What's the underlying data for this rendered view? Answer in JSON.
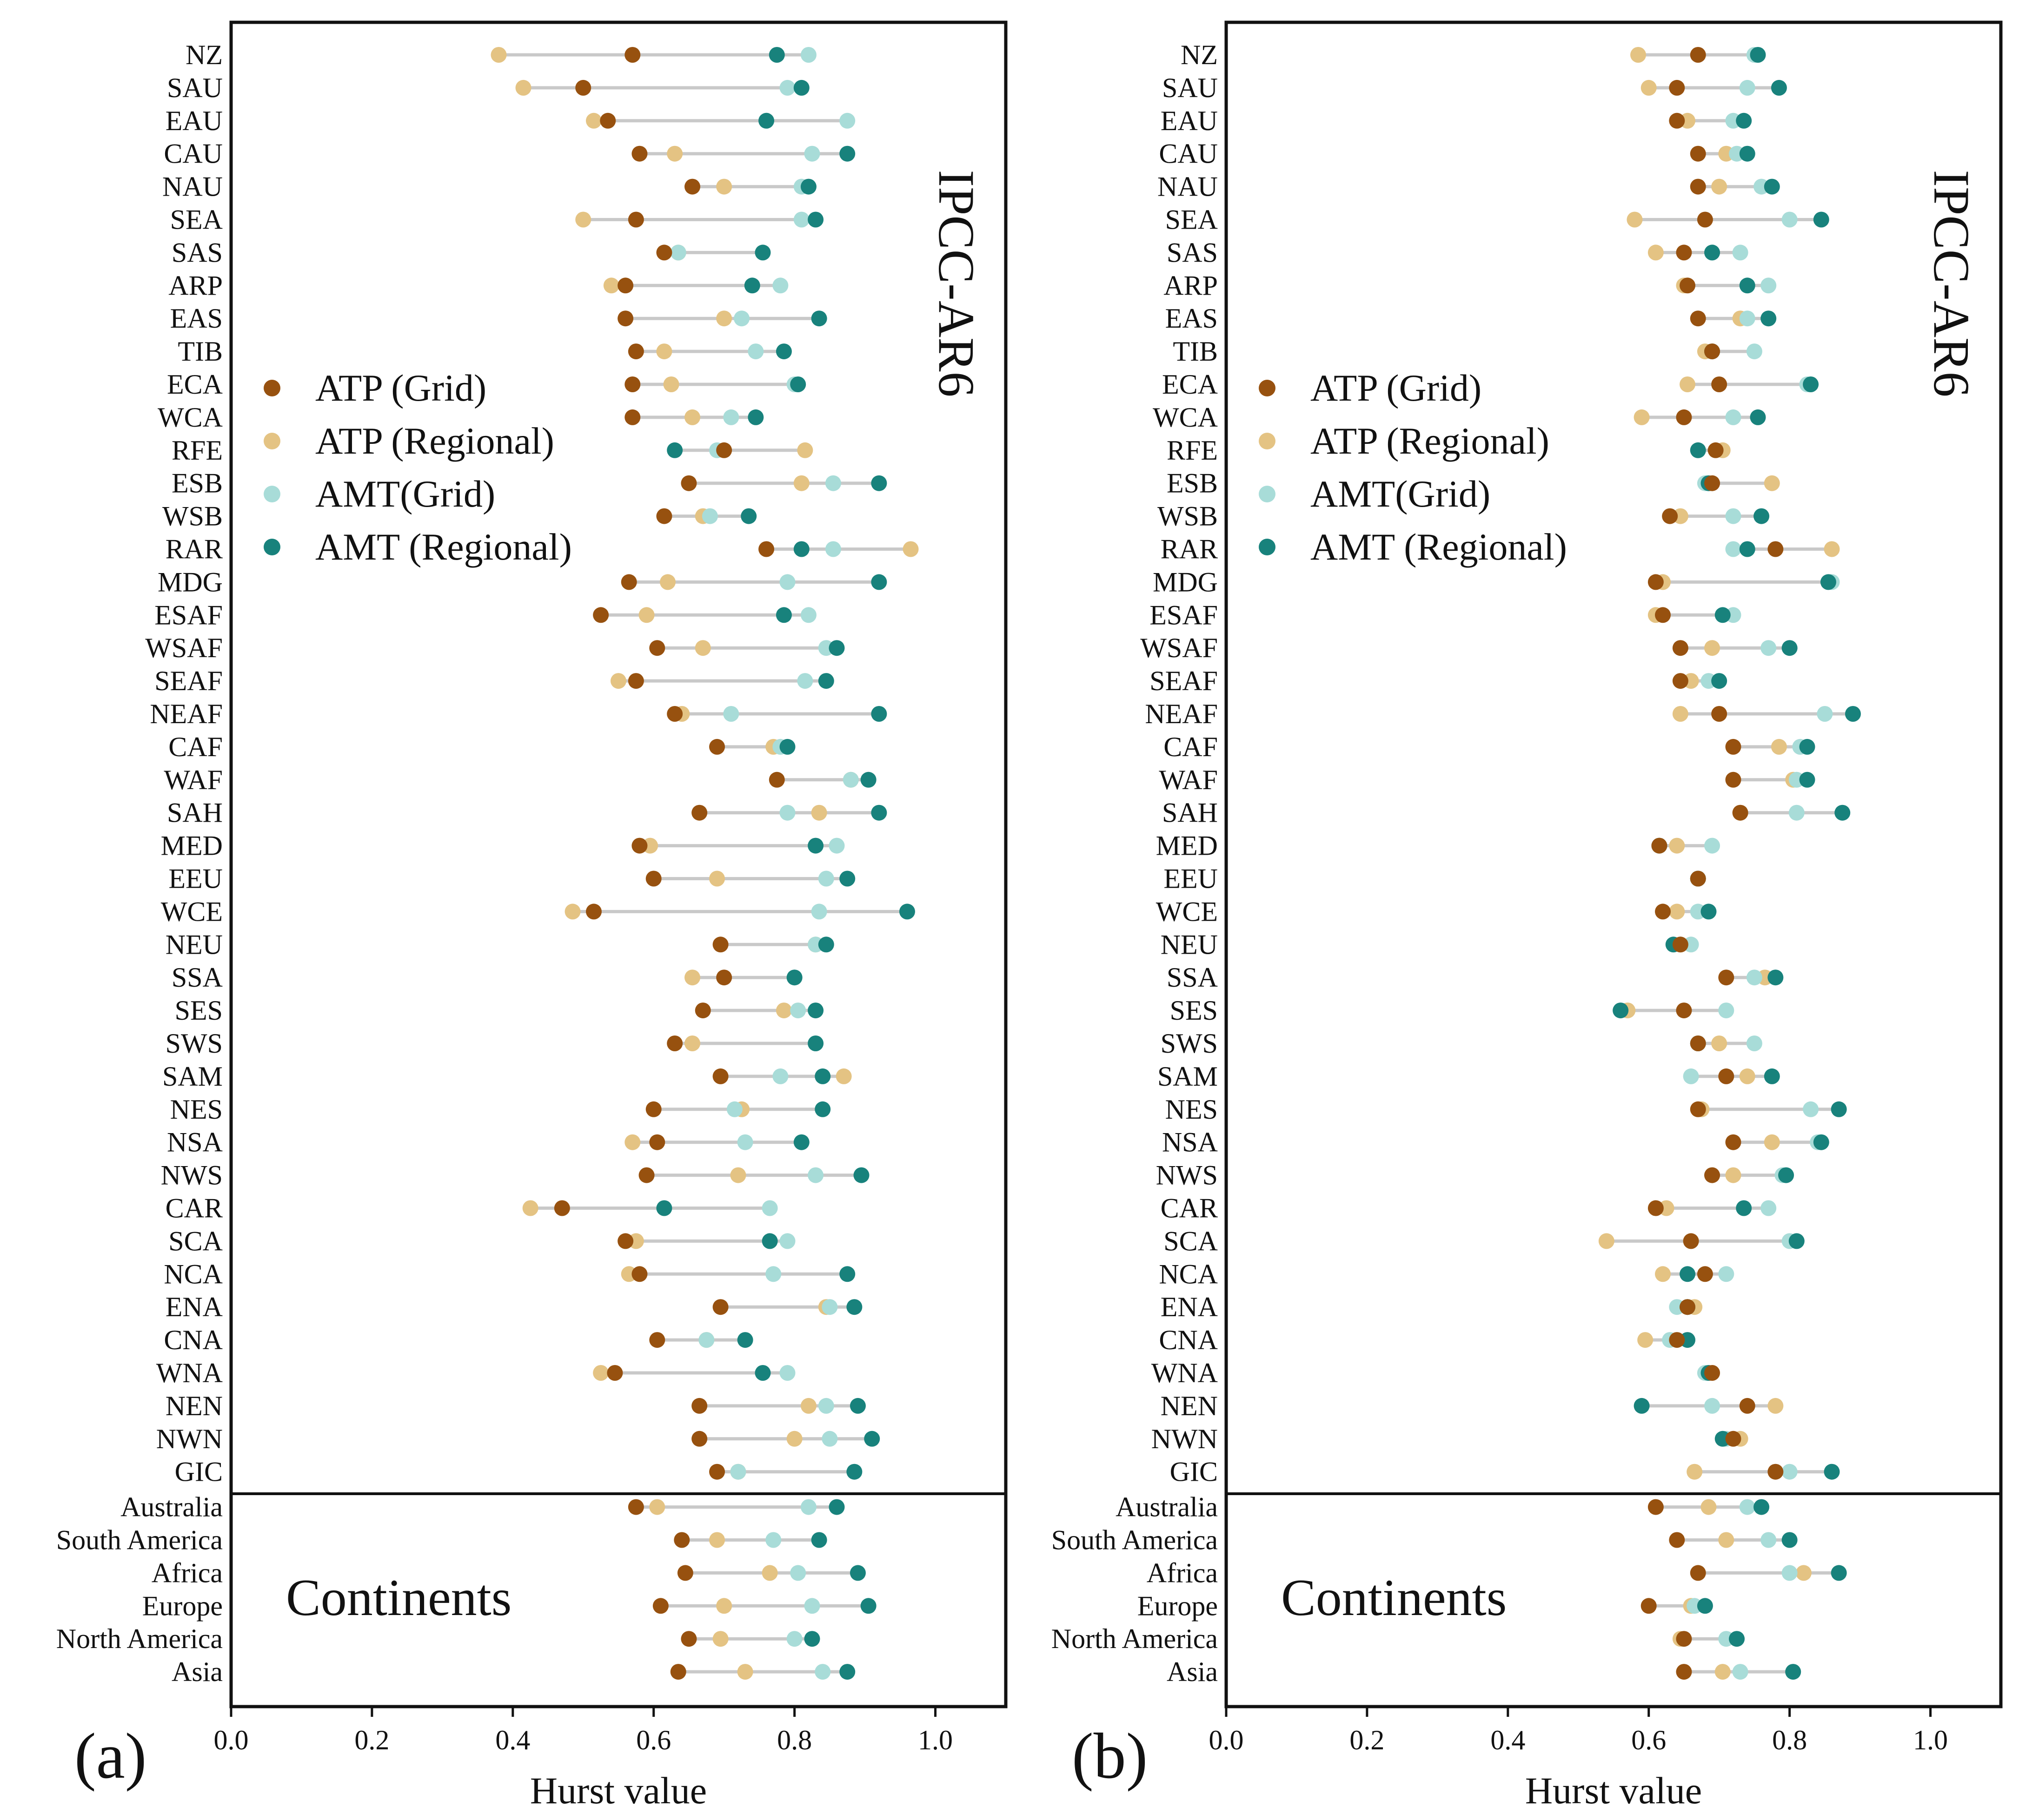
{
  "chart_data": {
    "type": "dot-range",
    "series_names": [
      "ATP (Grid)",
      "ATP (Regional)",
      "AMT(Grid)",
      "AMT (Regional)"
    ],
    "colors": {
      "ATP (Grid)": "#97510f",
      "ATP (Regional)": "#e4c383",
      "AMT(Grid)": "#a8dcd8",
      "AMT (Regional)": "#18827c",
      "line": "#c9c9c9"
    },
    "xlabel": "Hurst value",
    "xlim": [
      0,
      1.1
    ],
    "xticks": [
      "0.0",
      "0.2",
      "0.4",
      "0.6",
      "0.8",
      "1.0"
    ],
    "regions_group_label": "IPCC-AR6",
    "continents_group_label": "Continents",
    "regions": [
      "NZ",
      "SAU",
      "EAU",
      "CAU",
      "NAU",
      "SEA",
      "SAS",
      "ARP",
      "EAS",
      "TIB",
      "ECA",
      "WCA",
      "RFE",
      "ESB",
      "WSB",
      "RAR",
      "MDG",
      "ESAF",
      "WSAF",
      "SEAF",
      "NEAF",
      "CAF",
      "WAF",
      "SAH",
      "MED",
      "EEU",
      "WCE",
      "NEU",
      "SSA",
      "SES",
      "SWS",
      "SAM",
      "NES",
      "NSA",
      "NWS",
      "CAR",
      "SCA",
      "NCA",
      "ENA",
      "CNA",
      "WNA",
      "NEN",
      "NWN",
      "GIC"
    ],
    "continents": [
      "Australia",
      "South America",
      "Africa",
      "Europe",
      "North America",
      "Asia"
    ],
    "panels": [
      {
        "label": "(a)",
        "values": [
          [
            0.57,
            0.38,
            0.82,
            0.775
          ],
          [
            0.5,
            0.415,
            0.79,
            0.81
          ],
          [
            0.535,
            0.515,
            0.875,
            0.76
          ],
          [
            0.58,
            0.63,
            0.825,
            0.875
          ],
          [
            0.655,
            0.7,
            0.81,
            0.82
          ],
          [
            0.575,
            0.5,
            0.81,
            0.83
          ],
          [
            0.615,
            0.635,
            0.635,
            0.755
          ],
          [
            0.56,
            0.54,
            0.78,
            0.74
          ],
          [
            0.56,
            0.7,
            0.725,
            0.835
          ],
          [
            0.575,
            0.615,
            0.745,
            0.785
          ],
          [
            0.57,
            0.625,
            0.8,
            0.805
          ],
          [
            0.57,
            0.655,
            0.71,
            0.745
          ],
          [
            0.7,
            0.815,
            0.69,
            0.63
          ],
          [
            0.65,
            0.81,
            0.855,
            0.92
          ],
          [
            0.615,
            0.67,
            0.68,
            0.735
          ],
          [
            0.76,
            0.965,
            0.855,
            0.81
          ],
          [
            0.565,
            0.62,
            0.79,
            0.92
          ],
          [
            0.525,
            0.59,
            0.82,
            0.785
          ],
          [
            0.605,
            0.67,
            0.845,
            0.86
          ],
          [
            0.575,
            0.55,
            0.815,
            0.845
          ],
          [
            0.63,
            0.64,
            0.71,
            0.92
          ],
          [
            0.69,
            0.77,
            0.78,
            0.79
          ],
          [
            0.775,
            0.88,
            0.88,
            0.905
          ],
          [
            0.665,
            0.835,
            0.79,
            0.92
          ],
          [
            0.58,
            0.595,
            0.86,
            0.83
          ],
          [
            0.6,
            0.69,
            0.845,
            0.875
          ],
          [
            0.515,
            0.485,
            0.835,
            0.96
          ],
          [
            0.695,
            0.83,
            0.83,
            0.845
          ],
          [
            0.7,
            0.655,
            0.8,
            0.8
          ],
          [
            0.67,
            0.785,
            0.805,
            0.83
          ],
          [
            0.63,
            0.655,
            0.83,
            0.83
          ],
          [
            0.695,
            0.87,
            0.78,
            0.84
          ],
          [
            0.6,
            0.725,
            0.715,
            0.84
          ],
          [
            0.605,
            0.57,
            0.73,
            0.81
          ],
          [
            0.59,
            0.72,
            0.83,
            0.895
          ],
          [
            0.47,
            0.425,
            0.765,
            0.615
          ],
          [
            0.56,
            0.575,
            0.79,
            0.765
          ],
          [
            0.58,
            0.565,
            0.77,
            0.875
          ],
          [
            0.695,
            0.845,
            0.85,
            0.885
          ],
          [
            0.605,
            0.675,
            0.675,
            0.73
          ],
          [
            0.545,
            0.525,
            0.79,
            0.755
          ],
          [
            0.665,
            0.82,
            0.845,
            0.89
          ],
          [
            0.665,
            0.8,
            0.85,
            0.91
          ],
          [
            0.69,
            0.72,
            0.72,
            0.885
          ],
          [
            0.575,
            0.605,
            0.82,
            0.86
          ],
          [
            0.64,
            0.69,
            0.77,
            0.835
          ],
          [
            0.645,
            0.765,
            0.805,
            0.89
          ],
          [
            0.61,
            0.7,
            0.825,
            0.905
          ],
          [
            0.65,
            0.695,
            0.8,
            0.825
          ],
          [
            0.635,
            0.73,
            0.84,
            0.875
          ]
        ]
      },
      {
        "label": "(b)",
        "values": [
          [
            0.67,
            0.585,
            0.75,
            0.755
          ],
          [
            0.64,
            0.6,
            0.74,
            0.785
          ],
          [
            0.64,
            0.655,
            0.72,
            0.735
          ],
          [
            0.67,
            0.71,
            0.725,
            0.74
          ],
          [
            0.67,
            0.7,
            0.76,
            0.775
          ],
          [
            0.68,
            0.58,
            0.8,
            0.845
          ],
          [
            0.65,
            0.61,
            0.73,
            0.69
          ],
          [
            0.655,
            0.65,
            0.77,
            0.74
          ],
          [
            0.67,
            0.73,
            0.74,
            0.77
          ],
          [
            0.69,
            0.68,
            0.75,
            0.69
          ],
          [
            0.7,
            0.655,
            0.825,
            0.83
          ],
          [
            0.65,
            0.59,
            0.72,
            0.755
          ],
          [
            0.695,
            0.705,
            0.67,
            0.67
          ],
          [
            0.69,
            0.775,
            0.68,
            0.685
          ],
          [
            0.63,
            0.645,
            0.72,
            0.76
          ],
          [
            0.78,
            0.86,
            0.72,
            0.74
          ],
          [
            0.61,
            0.62,
            0.86,
            0.855
          ],
          [
            0.62,
            0.61,
            0.72,
            0.705
          ],
          [
            0.645,
            0.69,
            0.77,
            0.8
          ],
          [
            0.645,
            0.66,
            0.685,
            0.7
          ],
          [
            0.7,
            0.645,
            0.85,
            0.89
          ],
          [
            0.72,
            0.785,
            0.815,
            0.825
          ],
          [
            0.72,
            0.805,
            0.81,
            0.825
          ],
          [
            0.73,
            0.73,
            0.81,
            0.875
          ],
          [
            0.615,
            0.64,
            0.69,
            0.615
          ],
          [
            0.67,
            0.67,
            0.67,
            0.67
          ],
          [
            0.62,
            0.64,
            0.67,
            0.685
          ],
          [
            0.645,
            0.645,
            0.66,
            0.635
          ],
          [
            0.71,
            0.765,
            0.75,
            0.78
          ],
          [
            0.65,
            0.57,
            0.71,
            0.56
          ],
          [
            0.67,
            0.7,
            0.75,
            0.67
          ],
          [
            0.71,
            0.74,
            0.66,
            0.775
          ],
          [
            0.67,
            0.675,
            0.83,
            0.87
          ],
          [
            0.72,
            0.775,
            0.84,
            0.845
          ],
          [
            0.69,
            0.72,
            0.79,
            0.795
          ],
          [
            0.61,
            0.625,
            0.77,
            0.735
          ],
          [
            0.66,
            0.54,
            0.8,
            0.81
          ],
          [
            0.68,
            0.62,
            0.71,
            0.655
          ],
          [
            0.655,
            0.665,
            0.64,
            0.655
          ],
          [
            0.64,
            0.595,
            0.63,
            0.655
          ],
          [
            0.69,
            0.685,
            0.68,
            0.685
          ],
          [
            0.74,
            0.78,
            0.69,
            0.59
          ],
          [
            0.72,
            0.73,
            0.71,
            0.705
          ],
          [
            0.78,
            0.665,
            0.8,
            0.86
          ],
          [
            0.61,
            0.685,
            0.74,
            0.76
          ],
          [
            0.64,
            0.71,
            0.77,
            0.8
          ],
          [
            0.67,
            0.82,
            0.8,
            0.87
          ],
          [
            0.6,
            0.66,
            0.665,
            0.68
          ],
          [
            0.65,
            0.645,
            0.71,
            0.725
          ],
          [
            0.65,
            0.705,
            0.73,
            0.805
          ]
        ]
      }
    ]
  }
}
